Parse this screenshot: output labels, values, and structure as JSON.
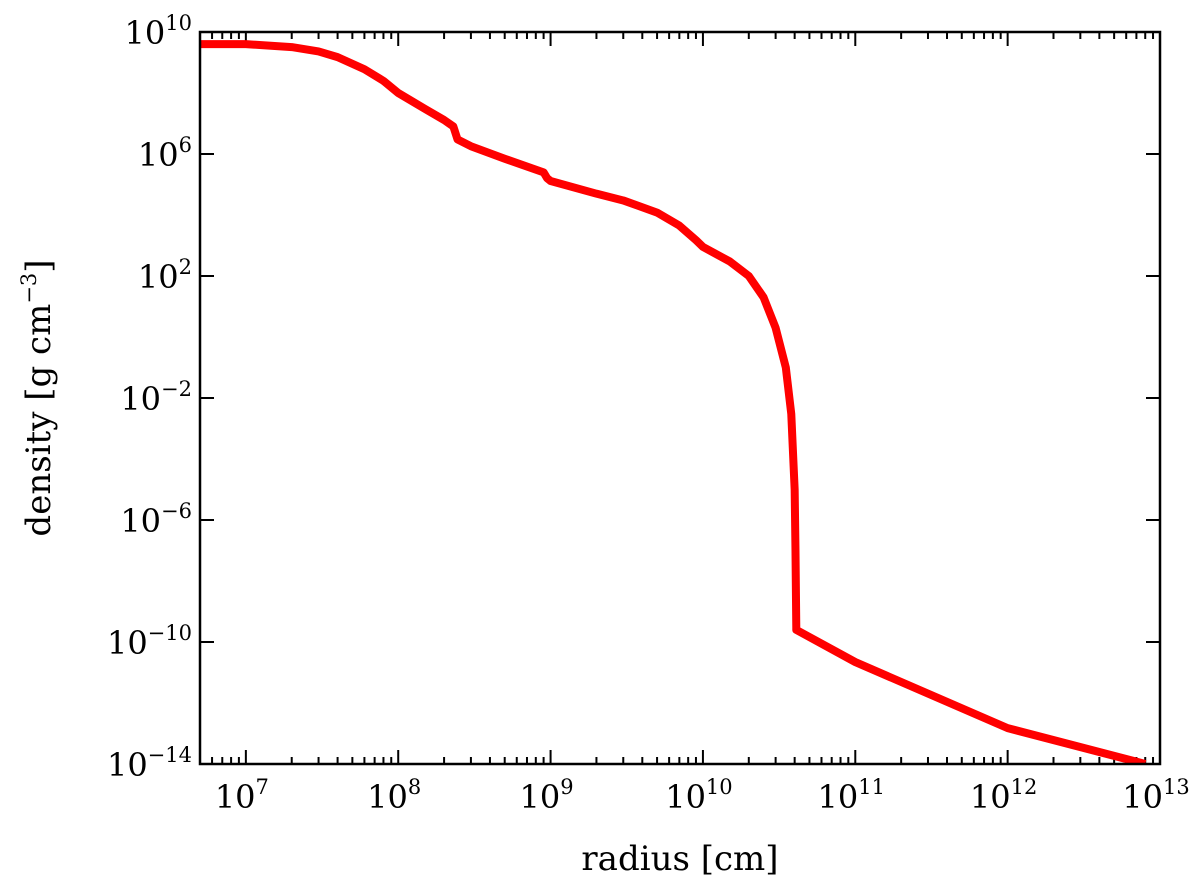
{
  "chart_data": {
    "type": "line",
    "title": "",
    "xlabel": "radius [cm]",
    "ylabel_parts": {
      "prefix": "density [g cm",
      "exponent": "−3",
      "suffix": "]"
    },
    "xscale": "log",
    "yscale": "log",
    "xlim": [
      5000000,
      10000000000000
    ],
    "ylim": [
      1e-14,
      10000000000
    ],
    "x_ticks": [
      {
        "base": "10",
        "exp": "7",
        "value": 10000000
      },
      {
        "base": "10",
        "exp": "8",
        "value": 100000000
      },
      {
        "base": "10",
        "exp": "9",
        "value": 1000000000
      },
      {
        "base": "10",
        "exp": "10",
        "value": 10000000000
      },
      {
        "base": "10",
        "exp": "11",
        "value": 100000000000
      },
      {
        "base": "10",
        "exp": "12",
        "value": 1000000000000
      },
      {
        "base": "10",
        "exp": "13",
        "value": 10000000000000
      }
    ],
    "y_ticks": [
      {
        "base": "10",
        "exp": "10",
        "value": 10000000000
      },
      {
        "base": "10",
        "exp": "6",
        "value": 1000000
      },
      {
        "base": "10",
        "exp": "2",
        "value": 100
      },
      {
        "base": "10",
        "exp": "−2",
        "value": 0.01
      },
      {
        "base": "10",
        "exp": "−6",
        "value": 1e-06
      },
      {
        "base": "10",
        "exp": "−10",
        "value": 1e-10
      },
      {
        "base": "10",
        "exp": "−14",
        "value": 1e-14
      }
    ],
    "grid": false,
    "legend": "none",
    "series": [
      {
        "color": "#ff0000",
        "x": [
          5000000,
          10000000,
          20000000,
          30000000,
          40000000,
          60000000,
          80000000,
          100000000,
          150000000,
          200000000,
          230000000,
          245000000,
          300000000,
          500000000,
          900000000,
          950000000,
          1000000000,
          2000000000,
          3000000000,
          5000000000,
          7000000000,
          9000000000,
          10000000000,
          15000000000,
          20000000000,
          25000000000,
          30000000000,
          35000000000,
          38000000000,
          40000000000,
          40500000000,
          41000000000,
          41000000000,
          100000000000,
          1000000000000,
          8000000000000
        ],
        "y": [
          4000000000,
          4000000000,
          3200000000,
          2300000000,
          1500000000,
          600000000,
          250000000,
          100000000,
          30000000,
          13000000,
          8000000,
          3000000,
          1800000,
          700000,
          250000,
          160000,
          130000,
          50000,
          30000,
          12000,
          4500,
          1500,
          900,
          300,
          100,
          20,
          2,
          0.1,
          0.003,
          1e-05,
          1e-07,
          3e-10,
          2.5e-10,
          2.2e-11,
          1.5e-13,
          1e-14
        ]
      }
    ]
  }
}
